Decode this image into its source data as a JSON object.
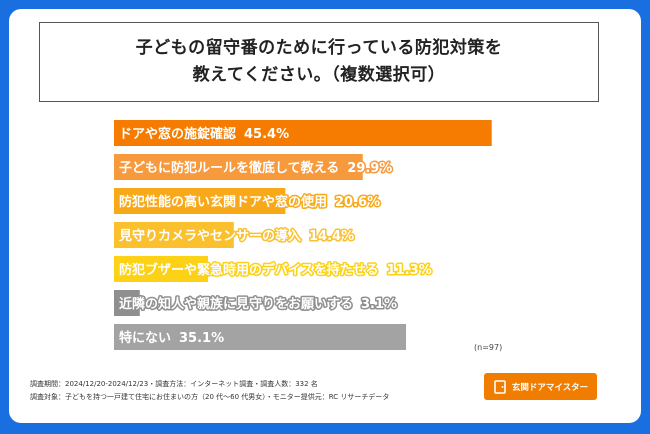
{
  "title": {
    "line1": "子どもの留守番のために行っている防犯対策を",
    "line2": "教えてください。（複数選択可）"
  },
  "chart_data": {
    "type": "bar",
    "orientation": "horizontal",
    "unit": "%",
    "xlim": [
      0,
      50
    ],
    "categories": [
      "ドアや窓の施錠確認",
      "子どもに防犯ルールを徹底して教える",
      "防犯性能の高い玄関ドアや窓の使用",
      "見守りカメラやセンサーの導入",
      "防犯ブザーや緊急時用のデバイスを持たせる",
      "近隣の知人や親族に見守りをお願いする",
      "特にない"
    ],
    "values": [
      45.4,
      29.9,
      20.6,
      14.4,
      11.3,
      3.1,
      35.1
    ],
    "value_labels": [
      "45.4%",
      "29.9%",
      "20.6%",
      "14.4%",
      "11.3%",
      "3.1%",
      "35.1%"
    ],
    "colors": [
      "#f57c00",
      "#f79a3e",
      "#f8a91a",
      "#fbc02d",
      "#fcd116",
      "#8f8f8f",
      "#a3a3a3"
    ],
    "grid": false,
    "legend": "none"
  },
  "n_label": "(n=97)",
  "footnotes": {
    "line1": "調査期間：2024/12/20-2024/12/23・調査方法：インターネット調査・調査人数：332 名",
    "line2": "調査対象：子どもを持つ一戸建て住宅にお住まいの方（20 代～60 代男女）・モニター提供元：RC リサーチデータ"
  },
  "logo": {
    "text": "玄関ドアマイスター",
    "color": "#f07d00"
  },
  "colors": {
    "frame": "#1a6fe0",
    "card": "#ffffff"
  }
}
